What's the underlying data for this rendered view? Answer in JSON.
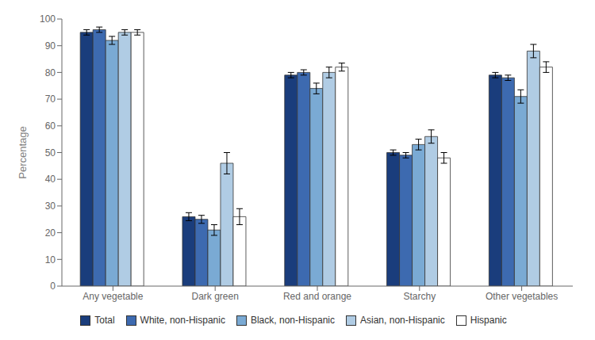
{
  "chart_data": {
    "type": "bar",
    "categories": [
      "Any vegetable",
      "Dark green",
      "Red and orange",
      "Starchy",
      "Other vegetables"
    ],
    "series": [
      {
        "name": "Total",
        "color": "#1a3d7c",
        "values": [
          95,
          26,
          79,
          50,
          79
        ],
        "errors": [
          1.0,
          1.5,
          1.0,
          1.0,
          1.0
        ]
      },
      {
        "name": "White, non-Hispanic",
        "color": "#3d6ab0",
        "values": [
          96,
          25,
          80,
          49,
          78
        ],
        "errors": [
          1.0,
          1.5,
          1.0,
          1.0,
          1.0
        ]
      },
      {
        "name": "Black, non-Hispanic",
        "color": "#7aaad4",
        "values": [
          92,
          21,
          74,
          53,
          71
        ],
        "errors": [
          1.5,
          2.0,
          2.0,
          2.0,
          2.5
        ]
      },
      {
        "name": "Asian, non-Hispanic",
        "color": "#b0cce4",
        "values": [
          95,
          46,
          80,
          56,
          88
        ],
        "errors": [
          1.0,
          4.0,
          2.0,
          2.5,
          2.5
        ]
      },
      {
        "name": "Hispanic",
        "color": "#ffffff",
        "values": [
          95,
          26,
          82,
          48,
          82
        ],
        "errors": [
          1.0,
          3.0,
          1.5,
          2.0,
          2.0
        ]
      }
    ],
    "ylabel": "Percentage",
    "ylim": [
      0,
      100
    ],
    "yticks": [
      0,
      10,
      20,
      30,
      40,
      50,
      60,
      70,
      80,
      90,
      100
    ],
    "grid": false,
    "legend": "bottom"
  }
}
